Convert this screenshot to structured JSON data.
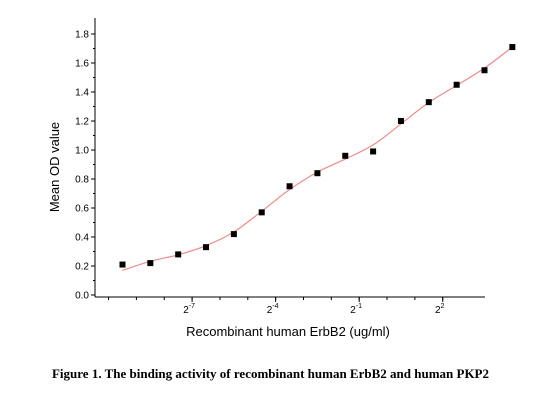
{
  "chart_data": {
    "type": "scatter",
    "xlabel": "Recombinant human  ErbB2  (ug/ml)",
    "ylabel": "Mean OD value",
    "xscale": "log2",
    "xlim": [
      -10.2,
      2.8
    ],
    "ylim": [
      0,
      1.9
    ],
    "y_ticks": [
      "0.0",
      "0.2",
      "0.4",
      "0.6",
      "0.8",
      "1.0",
      "1.2",
      "1.4",
      "1.6",
      "1.8"
    ],
    "x_ticks": [
      {
        "base": "2",
        "exp": "-7"
      },
      {
        "base": "2",
        "exp": "-4"
      },
      {
        "base": "2",
        "exp": "-1"
      },
      {
        "base": "2",
        "exp": "2"
      }
    ],
    "x": [
      -9.5,
      -8.5,
      -7.5,
      -6.5,
      -5.5,
      -4.5,
      -3.5,
      -2.5,
      -1.5,
      -0.5,
      0.5,
      1.5,
      2.5,
      3.5,
      4.5
    ],
    "y": [
      0.21,
      0.22,
      0.28,
      0.33,
      0.42,
      0.57,
      0.75,
      0.84,
      0.96,
      0.99,
      1.2,
      1.33,
      1.45,
      1.55,
      1.71
    ],
    "series": [
      {
        "marker": "square",
        "x": [
          -9.5,
          -8.5,
          -7.5,
          -6.5,
          -5.5,
          -4.5,
          -3.5,
          -2.5,
          -1.5,
          -0.5,
          0.5,
          1.5,
          2.5,
          3.5,
          4.5
        ],
        "y": [
          0.21,
          0.22,
          0.28,
          0.33,
          0.42,
          0.57,
          0.75,
          0.84,
          0.96,
          0.99,
          1.2,
          1.33,
          1.45,
          1.55,
          1.71
        ]
      }
    ],
    "fit_color": "#f08a8a",
    "marker_color": "#000000",
    "grid": false
  },
  "caption": "Figure 1. The binding activity of recombinant human ErbB2 and human PKP2"
}
